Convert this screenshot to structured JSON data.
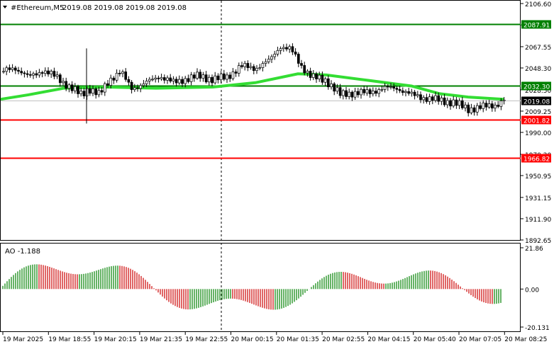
{
  "header": {
    "symbol_label": "#Ethereum,M5",
    "ohlc_label": "2019.08 2019.08 2019.08 2019.08",
    "symbol_icon": "triangle-down-icon"
  },
  "price_axis": {
    "ticks": [
      "2106.60",
      "2087.25",
      "2067.55",
      "2048.30",
      "2028.50",
      "2009.25",
      "1990.00",
      "1970.20",
      "1950.95",
      "1931.15",
      "1911.90",
      "1892.65"
    ],
    "tick_values": [
      2106.6,
      2087.25,
      2067.55,
      2048.3,
      2028.5,
      2009.25,
      1990.0,
      1970.2,
      1950.95,
      1931.15,
      1911.9,
      1892.65
    ],
    "min": 1892.65,
    "max": 2106.6
  },
  "levels": [
    {
      "name": "resistance-level-high",
      "label": "2087.91",
      "value": 2087.91,
      "color": "#008000"
    },
    {
      "name": "resistance-level-mid",
      "label": "2032.30",
      "value": 2032.3,
      "color": "#008000"
    },
    {
      "name": "support-level-low",
      "label": "2001.82",
      "value": 2001.82,
      "color": "#ff0000"
    },
    {
      "name": "support-level-lowest",
      "label": "1966.82",
      "value": 1966.82,
      "color": "#ff0000"
    }
  ],
  "current_price": {
    "label": "2019.08",
    "value": 2019.08
  },
  "indicator": {
    "name_label": "AO -1.188",
    "ticks": [
      "21.86",
      "0.00",
      "-20.131"
    ],
    "tick_values": [
      21.86,
      0,
      -20.131
    ],
    "min": -20.131,
    "max": 21.86
  },
  "time_axis": {
    "labels": [
      "19 Mar 2025",
      "19 Mar 18:55",
      "19 Mar 20:15",
      "19 Mar 21:35",
      "19 Mar 22:55",
      "20 Mar 00:15",
      "20 Mar 01:35",
      "20 Mar 02:55",
      "20 Mar 04:15",
      "20 Mar 05:40",
      "20 Mar 07:05",
      "20 Mar 08:25"
    ]
  },
  "colors": {
    "ma_line": "#33dd33",
    "ao_up": "#008000",
    "ao_down": "#cc0000",
    "candle": "#000000"
  }
}
